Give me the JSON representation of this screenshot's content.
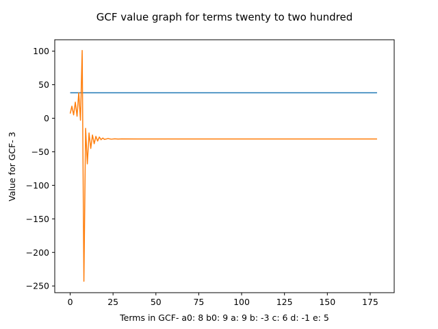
{
  "chart_data": {
    "type": "line",
    "title": "GCF value graph for terms twenty to two hundred",
    "xlabel": "Terms in GCF-  a0: 8 b0: 9 a: 9 b: -3 c: 6 d: -1 e: 5",
    "ylabel": "Value for GCF- 3",
    "xlim": [
      -9,
      189
    ],
    "ylim": [
      -260,
      117
    ],
    "xticks": [
      0,
      25,
      50,
      75,
      100,
      125,
      150,
      175
    ],
    "yticks": [
      100,
      50,
      0,
      -50,
      -100,
      -150,
      -200,
      -250
    ],
    "xtick_labels": [
      "0",
      "25",
      "50",
      "75",
      "100",
      "125",
      "150",
      "175"
    ],
    "ytick_labels": [
      "100",
      "50",
      "0",
      "−50",
      "−100",
      "−150",
      "−200",
      "−250"
    ],
    "grid": false,
    "series": [
      {
        "color": "#1f77b4",
        "x": [
          0,
          179
        ],
        "y": [
          38,
          38
        ]
      },
      {
        "color": "#ff7f0e",
        "x": [
          0,
          1,
          2,
          3,
          4,
          5,
          6,
          7,
          8,
          9,
          10,
          11,
          12,
          13,
          14,
          15,
          16,
          17,
          18,
          19,
          20,
          22,
          24,
          26,
          28,
          30,
          40,
          60,
          100,
          179
        ],
        "y": [
          7,
          18,
          5,
          24,
          3,
          38,
          -3,
          101,
          -243,
          -15,
          -68,
          -22,
          -45,
          -25,
          -38,
          -27,
          -34,
          -28,
          -32,
          -29.5,
          -31.5,
          -30.3,
          -31.2,
          -30.6,
          -31,
          -30.8,
          -30.9,
          -30.9,
          -30.9,
          -30.9
        ]
      }
    ]
  }
}
